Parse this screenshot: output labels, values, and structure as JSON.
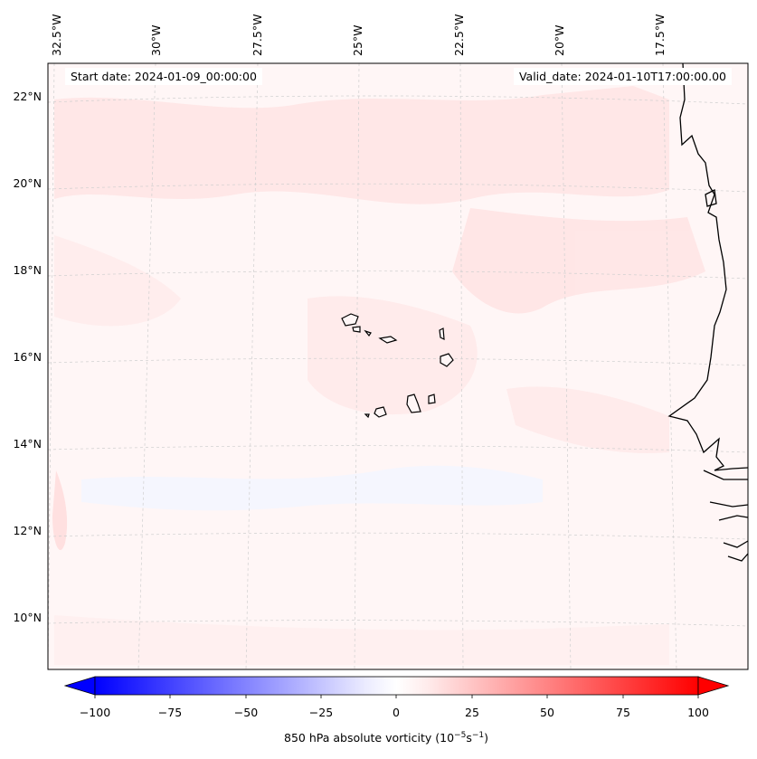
{
  "map": {
    "start_date": "Start date: 2024-01-09_00:00:00",
    "valid_date": "Valid_date: 2024-01-10T17:00:00.00",
    "lon_labels": [
      "32.5°W",
      "30°W",
      "27.5°W",
      "25°W",
      "22.5°W",
      "20°W",
      "17.5°W"
    ],
    "lat_labels": [
      "22°N",
      "20°N",
      "18°N",
      "16°N",
      "14°N",
      "12°N",
      "10°N"
    ],
    "colorbar": {
      "label": "850 hPa absolute vorticity (10",
      "label_exp1": "−5",
      "label_mid": "s",
      "label_exp2": "−1",
      "label_end": ")",
      "ticks": [
        "−100",
        "−75",
        "−50",
        "−25",
        "0",
        "25",
        "50",
        "75",
        "100"
      ],
      "vmin": -100,
      "vmax": 100,
      "low_color": "#0000ff",
      "mid_color": "#ffffff",
      "high_color": "#ff0000"
    },
    "background_color": "#fff5f5",
    "coastline_color": "#000000"
  }
}
